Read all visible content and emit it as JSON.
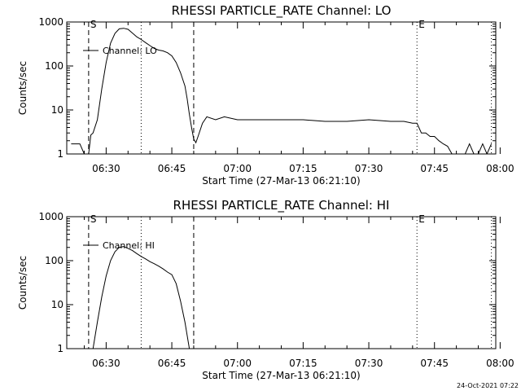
{
  "footer": {
    "timestamp": "24-Oct-2021 07:22"
  },
  "chart_data": [
    {
      "type": "line",
      "title": "RHESSI PARTICLE_RATE Channel: LO",
      "xlabel": "Start Time (27-Mar-13 06:21:10)",
      "ylabel": "Counts/sec",
      "y_scale": "log",
      "xlim": [
        "06:21",
        "07:59"
      ],
      "ylim": [
        1,
        1000
      ],
      "x_ticks": [
        "06:30",
        "06:45",
        "07:00",
        "07:15",
        "07:30",
        "07:45",
        "08:00"
      ],
      "y_ticks": [
        "1",
        "10",
        "100",
        "1000"
      ],
      "legend": {
        "position": "top-left",
        "entries": [
          "Channel: LO"
        ]
      },
      "markers": {
        "S": "06:26",
        "E": "07:41",
        "dashed_lines": [
          "06:26",
          "06:50"
        ],
        "dotted_lines": [
          "06:38",
          "07:41",
          "07:58"
        ]
      },
      "series": [
        {
          "name": "Channel: LO",
          "x": [
            "06:22",
            "06:24",
            "06:25",
            "06:26",
            "06:26:30",
            "06:27",
            "06:28",
            "06:29",
            "06:30",
            "06:31",
            "06:32",
            "06:33",
            "06:34",
            "06:35",
            "06:36",
            "06:37",
            "06:38",
            "06:39",
            "06:40",
            "06:41",
            "06:42",
            "06:43",
            "06:44",
            "06:45",
            "06:46",
            "06:47",
            "06:48",
            "06:48:30",
            "06:49",
            "06:49:30",
            "06:50",
            "06:50:30",
            "06:51",
            "06:52",
            "06:53",
            "06:55",
            "06:57",
            "07:00",
            "07:05",
            "07:10",
            "07:15",
            "07:20",
            "07:25",
            "07:30",
            "07:35",
            "07:38",
            "07:40",
            "07:41",
            "07:42",
            "07:43",
            "07:44",
            "07:45",
            "07:46",
            "07:47",
            "07:48",
            "07:49",
            "07:50",
            "07:51",
            "07:52",
            "07:53",
            "07:54",
            "07:55",
            "07:56",
            "07:57",
            "07:58"
          ],
          "values": [
            1.7,
            1.7,
            1,
            1,
            2.7,
            3,
            6,
            30,
            120,
            330,
            550,
            700,
            720,
            680,
            560,
            460,
            400,
            340,
            290,
            250,
            230,
            220,
            200,
            170,
            120,
            70,
            35,
            18,
            8,
            4,
            2.2,
            1.8,
            2.5,
            5,
            7,
            6,
            7,
            6,
            6,
            6,
            6,
            5.5,
            5.5,
            6,
            5.5,
            5.5,
            5,
            5,
            3,
            3,
            2.5,
            2.5,
            2,
            1.7,
            1.5,
            1,
            1,
            1,
            1,
            1.7,
            1,
            1,
            1.7,
            1,
            1.7
          ]
        }
      ]
    },
    {
      "type": "line",
      "title": "RHESSI PARTICLE_RATE Channel: HI",
      "xlabel": "Start Time (27-Mar-13 06:21:10)",
      "ylabel": "Counts/sec",
      "y_scale": "log",
      "xlim": [
        "06:21",
        "07:59"
      ],
      "ylim": [
        1,
        1000
      ],
      "x_ticks": [
        "06:30",
        "06:45",
        "07:00",
        "07:15",
        "07:30",
        "07:45",
        "08:00"
      ],
      "y_ticks": [
        "1",
        "10",
        "100",
        "1000"
      ],
      "legend": {
        "position": "top-left",
        "entries": [
          "Channel: HI"
        ]
      },
      "markers": {
        "S": "06:26",
        "E": "07:41",
        "dashed_lines": [
          "06:26",
          "06:50"
        ],
        "dotted_lines": [
          "06:38",
          "07:41",
          "07:58"
        ]
      },
      "series": [
        {
          "name": "Channel: HI",
          "x": [
            "06:27",
            "06:28",
            "06:29",
            "06:30",
            "06:31",
            "06:32",
            "06:33",
            "06:34",
            "06:35",
            "06:36",
            "06:37",
            "06:38",
            "06:39",
            "06:40",
            "06:41",
            "06:42",
            "06:43",
            "06:44",
            "06:45",
            "06:46",
            "06:47",
            "06:48",
            "06:48:30",
            "06:49"
          ],
          "values": [
            1,
            4,
            15,
            45,
            100,
            160,
            200,
            210,
            190,
            170,
            145,
            125,
            110,
            95,
            85,
            75,
            65,
            55,
            48,
            30,
            12,
            4,
            2,
            1
          ]
        }
      ]
    }
  ]
}
